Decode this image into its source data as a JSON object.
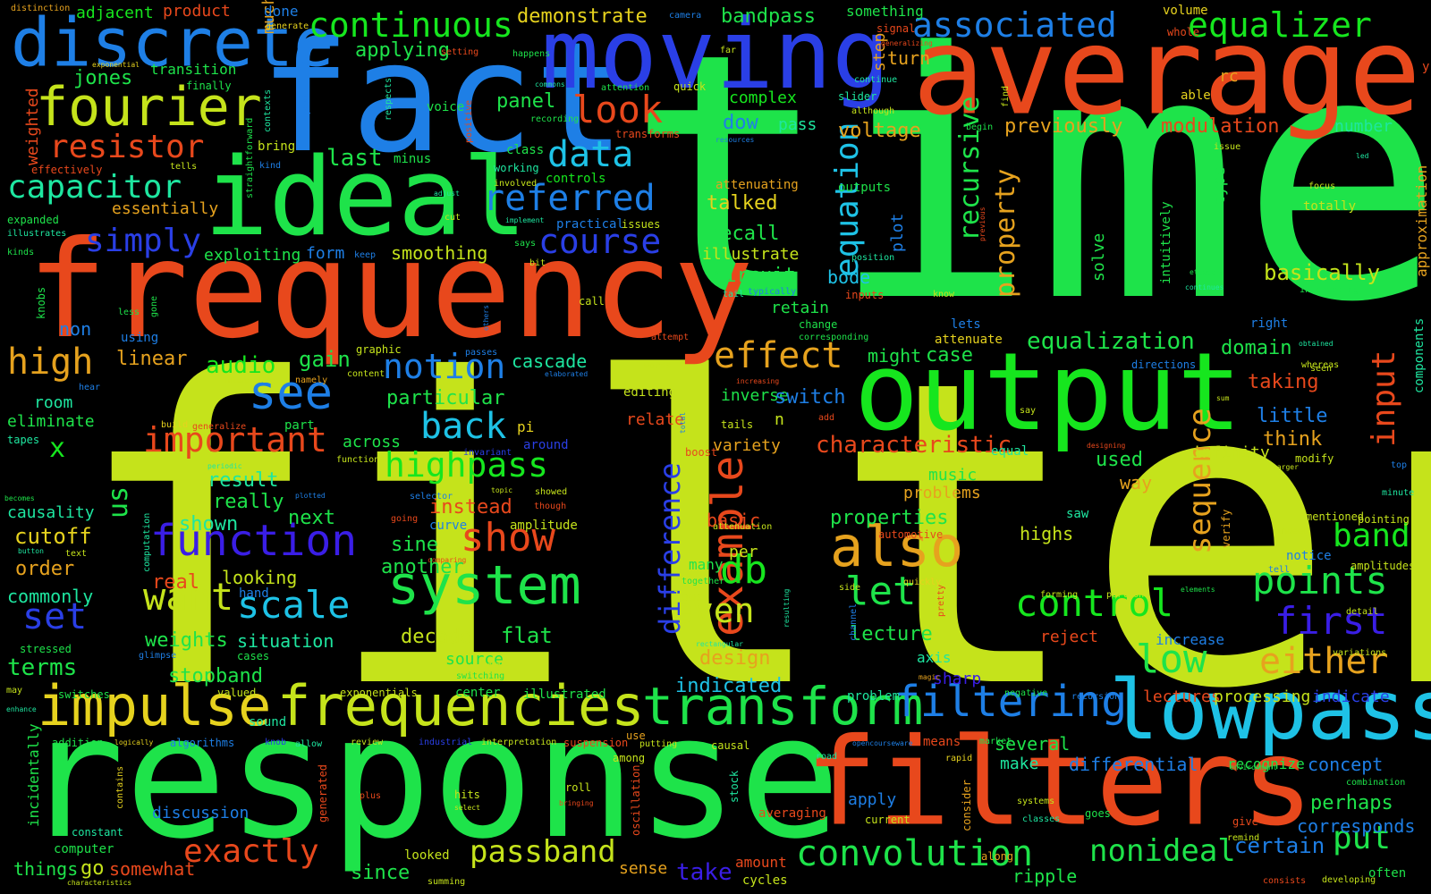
{
  "palette": {
    "yellowgreen": "#c5e31b",
    "green": "#1ee34a",
    "lime": "#16e61e",
    "orange": "#e8481c",
    "amber": "#e6a21e",
    "blue": "#1e7fe6",
    "indigo": "#2a3fe6",
    "violet": "#3a1ee6",
    "cyan": "#1ec2e6",
    "teal": "#1ee6a0",
    "background": "#000000"
  },
  "words": [
    {
      "t": "time"
    },
    {
      "t": "filter"
    },
    {
      "t": "response"
    },
    {
      "t": "frequency"
    },
    {
      "t": "average"
    },
    {
      "t": "fact"
    },
    {
      "t": "ideal"
    },
    {
      "t": "moving"
    },
    {
      "t": "output"
    },
    {
      "t": "filters"
    },
    {
      "t": "lowpass"
    },
    {
      "t": "discrete"
    },
    {
      "t": "fourier"
    },
    {
      "t": "impulse"
    },
    {
      "t": "frequencies"
    },
    {
      "t": "transform"
    },
    {
      "t": "filtering"
    },
    {
      "t": "system"
    },
    {
      "t": "also"
    },
    {
      "t": "example"
    },
    {
      "t": "convolution"
    },
    {
      "t": "function"
    },
    {
      "t": "continuous"
    },
    {
      "t": "associated"
    },
    {
      "t": "equalizer"
    },
    {
      "t": "resistor"
    },
    {
      "t": "capacitor"
    },
    {
      "t": "highpass"
    },
    {
      "t": "notion"
    },
    {
      "t": "important"
    },
    {
      "t": "see"
    },
    {
      "t": "back"
    },
    {
      "t": "show"
    },
    {
      "t": "want"
    },
    {
      "t": "scale"
    },
    {
      "t": "control"
    },
    {
      "t": "points"
    },
    {
      "t": "first"
    },
    {
      "t": "either"
    },
    {
      "t": "low"
    },
    {
      "t": "band"
    },
    {
      "t": "db"
    },
    {
      "t": "let"
    },
    {
      "t": "even"
    },
    {
      "t": "effect"
    },
    {
      "t": "look"
    },
    {
      "t": "data"
    },
    {
      "t": "referred"
    },
    {
      "t": "course"
    },
    {
      "t": "simply"
    },
    {
      "t": "high"
    },
    {
      "t": "set"
    },
    {
      "t": "exactly"
    },
    {
      "t": "passband"
    },
    {
      "t": "nonideal"
    },
    {
      "t": "put"
    },
    {
      "t": "certain"
    },
    {
      "t": "equalization"
    },
    {
      "t": "characteristic"
    },
    {
      "t": "sequence"
    },
    {
      "t": "difference"
    },
    {
      "t": "equation"
    },
    {
      "t": "recursive"
    },
    {
      "t": "property"
    },
    {
      "t": "input"
    },
    {
      "t": "jones"
    },
    {
      "t": "adjacent"
    },
    {
      "t": "product"
    },
    {
      "t": "demonstrate"
    },
    {
      "t": "bandpass"
    },
    {
      "t": "transition"
    },
    {
      "t": "weighted"
    },
    {
      "t": "last"
    },
    {
      "t": "essentially"
    },
    {
      "t": "applying"
    },
    {
      "t": "panel"
    },
    {
      "t": "voltage"
    },
    {
      "t": "previously"
    },
    {
      "t": "modulation"
    },
    {
      "t": "number"
    },
    {
      "t": "talked"
    },
    {
      "t": "recall"
    },
    {
      "t": "illustrate"
    },
    {
      "t": "circuit"
    },
    {
      "t": "bode"
    },
    {
      "t": "retain"
    },
    {
      "t": "basically"
    },
    {
      "t": "smoothing"
    },
    {
      "t": "exploiting"
    },
    {
      "t": "form"
    },
    {
      "t": "linear"
    },
    {
      "t": "audio"
    },
    {
      "t": "gain"
    },
    {
      "t": "cascade"
    },
    {
      "t": "particular"
    },
    {
      "t": "room"
    },
    {
      "t": "eliminate"
    },
    {
      "t": "result"
    },
    {
      "t": "really"
    },
    {
      "t": "causality"
    },
    {
      "t": "cutoff"
    },
    {
      "t": "order"
    },
    {
      "t": "commonly"
    },
    {
      "t": "shown"
    },
    {
      "t": "next"
    },
    {
      "t": "instead"
    },
    {
      "t": "sine"
    },
    {
      "t": "another"
    },
    {
      "t": "real"
    },
    {
      "t": "looking"
    },
    {
      "t": "weights"
    },
    {
      "t": "situation"
    },
    {
      "t": "stopband"
    },
    {
      "t": "terms"
    },
    {
      "t": "decade"
    },
    {
      "t": "flat"
    },
    {
      "t": "source"
    },
    {
      "t": "lecture"
    },
    {
      "t": "design"
    },
    {
      "t": "indicated"
    },
    {
      "t": "basic"
    },
    {
      "t": "variety"
    },
    {
      "t": "inverse"
    },
    {
      "t": "switch"
    },
    {
      "t": "case"
    },
    {
      "t": "domain"
    },
    {
      "t": "taking"
    },
    {
      "t": "little"
    },
    {
      "t": "think"
    },
    {
      "t": "infinity"
    },
    {
      "t": "used"
    },
    {
      "t": "way"
    },
    {
      "t": "music"
    },
    {
      "t": "problems"
    },
    {
      "t": "properties"
    },
    {
      "t": "highs"
    },
    {
      "t": "reject"
    },
    {
      "t": "axis"
    },
    {
      "t": "sharp"
    },
    {
      "t": "increase"
    },
    {
      "t": "lectures"
    },
    {
      "t": "processing"
    },
    {
      "t": "indicate"
    },
    {
      "t": "several"
    },
    {
      "t": "make"
    },
    {
      "t": "differential"
    },
    {
      "t": "concept"
    },
    {
      "t": "recognize"
    },
    {
      "t": "perhaps"
    },
    {
      "t": "corresponds"
    },
    {
      "t": "apply"
    },
    {
      "t": "averaging"
    },
    {
      "t": "amount"
    },
    {
      "t": "take"
    },
    {
      "t": "since"
    },
    {
      "t": "go"
    },
    {
      "t": "things"
    },
    {
      "t": "somewhat"
    },
    {
      "t": "ripple"
    },
    {
      "t": "sense"
    },
    {
      "t": "discussion"
    },
    {
      "t": "computer"
    },
    {
      "t": "us"
    },
    {
      "t": "x"
    },
    {
      "t": "non"
    },
    {
      "t": "using"
    },
    {
      "t": "complex"
    },
    {
      "t": "pass"
    },
    {
      "t": "dow"
    },
    {
      "t": "step"
    },
    {
      "t": "turn"
    },
    {
      "t": "much"
    },
    {
      "t": "done"
    },
    {
      "t": "something"
    },
    {
      "t": "volume"
    },
    {
      "t": "rc"
    },
    {
      "t": "type"
    },
    {
      "t": "solve"
    },
    {
      "t": "plot"
    },
    {
      "t": "might"
    },
    {
      "t": "per"
    },
    {
      "t": "n"
    },
    {
      "t": "approximation"
    },
    {
      "t": "components"
    },
    {
      "t": "intuitively"
    },
    {
      "t": "right"
    },
    {
      "t": "lets"
    },
    {
      "t": "knobs"
    },
    {
      "t": "controls"
    },
    {
      "t": "class"
    },
    {
      "t": "minus"
    },
    {
      "t": "bring"
    },
    {
      "t": "voice"
    },
    {
      "t": "finally"
    },
    {
      "t": "expanded"
    },
    {
      "t": "illustrates"
    },
    {
      "t": "kinds"
    },
    {
      "t": "distinction"
    },
    {
      "t": "past"
    },
    {
      "t": "signal"
    },
    {
      "t": "whole"
    },
    {
      "t": "able"
    },
    {
      "t": "camera"
    },
    {
      "t": "happens"
    },
    {
      "t": "generate"
    },
    {
      "t": "setting"
    },
    {
      "t": "exponential"
    },
    {
      "t": "attention"
    },
    {
      "t": "quick"
    },
    {
      "t": "recording"
    },
    {
      "t": "transforms"
    },
    {
      "t": "commons"
    },
    {
      "t": "working"
    },
    {
      "t": "involved"
    },
    {
      "t": "cut"
    },
    {
      "t": "practical"
    },
    {
      "t": "issues"
    },
    {
      "t": "implement"
    },
    {
      "t": "attenuating"
    },
    {
      "t": "outputs"
    },
    {
      "t": "slider"
    },
    {
      "t": "although"
    },
    {
      "t": "continue"
    },
    {
      "t": "focus"
    },
    {
      "t": "totally"
    },
    {
      "t": "interesting"
    },
    {
      "t": "says"
    },
    {
      "t": "bit"
    },
    {
      "t": "keep"
    },
    {
      "t": "call"
    },
    {
      "t": "typically"
    },
    {
      "t": "inputs"
    },
    {
      "t": "change"
    },
    {
      "t": "corresponding"
    },
    {
      "t": "attenuate"
    },
    {
      "t": "attempt"
    },
    {
      "t": "graphic"
    },
    {
      "t": "content"
    },
    {
      "t": "namely"
    },
    {
      "t": "interpreting"
    },
    {
      "t": "hear"
    },
    {
      "t": "tapes"
    },
    {
      "t": "editing"
    },
    {
      "t": "relate"
    },
    {
      "t": "pi"
    },
    {
      "t": "around"
    },
    {
      "t": "across"
    },
    {
      "t": "build"
    },
    {
      "t": "generalize"
    },
    {
      "t": "part"
    },
    {
      "t": "functions"
    },
    {
      "t": "periodic"
    },
    {
      "t": "becomes"
    },
    {
      "t": "button"
    },
    {
      "t": "selector"
    },
    {
      "t": "topic"
    },
    {
      "t": "showed"
    },
    {
      "t": "though"
    },
    {
      "t": "going"
    },
    {
      "t": "curve"
    },
    {
      "t": "amplitude"
    },
    {
      "t": "text"
    },
    {
      "t": "computation"
    },
    {
      "t": "hand"
    },
    {
      "t": "stressed"
    },
    {
      "t": "glimpse"
    },
    {
      "t": "cases"
    },
    {
      "t": "aware"
    },
    {
      "t": "switching"
    },
    {
      "t": "center"
    },
    {
      "t": "valued"
    },
    {
      "t": "exponentials"
    },
    {
      "t": "illustrated"
    },
    {
      "t": "switches"
    },
    {
      "t": "may"
    },
    {
      "t": "enhance"
    },
    {
      "t": "addition"
    },
    {
      "t": "logically"
    },
    {
      "t": "algorithms"
    },
    {
      "t": "sound"
    },
    {
      "t": "knob"
    },
    {
      "t": "allow"
    },
    {
      "t": "review"
    },
    {
      "t": "industrial"
    },
    {
      "t": "interpretation"
    },
    {
      "t": "suspension"
    },
    {
      "t": "putting"
    },
    {
      "t": "causal"
    },
    {
      "t": "opencourseware"
    },
    {
      "t": "means"
    },
    {
      "t": "market"
    },
    {
      "t": "rapid"
    },
    {
      "t": "road"
    },
    {
      "t": "among"
    },
    {
      "t": "use"
    },
    {
      "t": "roll"
    },
    {
      "t": "bringing"
    },
    {
      "t": "hits"
    },
    {
      "t": "select"
    },
    {
      "t": "plus"
    },
    {
      "t": "generated"
    },
    {
      "t": "contains"
    },
    {
      "t": "incidentally"
    },
    {
      "t": "constant"
    },
    {
      "t": "characteristics"
    },
    {
      "t": "summing"
    },
    {
      "t": "looked"
    },
    {
      "t": "oscillation"
    },
    {
      "t": "stock"
    },
    {
      "t": "cycles"
    },
    {
      "t": "current"
    },
    {
      "t": "along"
    },
    {
      "t": "consider"
    },
    {
      "t": "systems"
    },
    {
      "t": "classes"
    },
    {
      "t": "goes"
    },
    {
      "t": "give"
    },
    {
      "t": "remind"
    },
    {
      "t": "consists"
    },
    {
      "t": "developing"
    },
    {
      "t": "often"
    },
    {
      "t": "combination"
    },
    {
      "t": "environment"
    },
    {
      "t": "negative"
    },
    {
      "t": "recursion"
    },
    {
      "t": "magic"
    },
    {
      "t": "problem"
    },
    {
      "t": "side"
    },
    {
      "t": "channel"
    },
    {
      "t": "pretty"
    },
    {
      "t": "rectangular"
    },
    {
      "t": "quickly"
    },
    {
      "t": "resulting"
    },
    {
      "t": "lows"
    },
    {
      "t": "many"
    },
    {
      "t": "together"
    },
    {
      "t": "saw"
    },
    {
      "t": "forming"
    },
    {
      "t": "portion"
    },
    {
      "t": "tell"
    },
    {
      "t": "notice"
    },
    {
      "t": "indeed"
    },
    {
      "t": "mentioned"
    },
    {
      "t": "pointing"
    },
    {
      "t": "amplitudes"
    },
    {
      "t": "detail"
    },
    {
      "t": "variations"
    },
    {
      "t": "verify"
    },
    {
      "t": "minute"
    },
    {
      "t": "top"
    },
    {
      "t": "larger"
    },
    {
      "t": "designing"
    },
    {
      "t": "modify"
    },
    {
      "t": "equal"
    },
    {
      "t": "say"
    },
    {
      "t": "sum"
    },
    {
      "t": "seen"
    },
    {
      "t": "whereas"
    },
    {
      "t": "directions"
    },
    {
      "t": "obtained"
    },
    {
      "t": "increasing"
    },
    {
      "t": "words"
    },
    {
      "t": "total"
    },
    {
      "t": "tails"
    },
    {
      "t": "add"
    },
    {
      "t": "boost"
    },
    {
      "t": "attenuation"
    },
    {
      "t": "automotive"
    },
    {
      "t": "comparing"
    },
    {
      "t": "tail"
    },
    {
      "t": "position"
    },
    {
      "t": "resources"
    },
    {
      "t": "respects"
    },
    {
      "t": "contexts"
    },
    {
      "t": "straightforward"
    },
    {
      "t": "kind"
    },
    {
      "t": "tells"
    },
    {
      "t": "effectively"
    },
    {
      "t": "adjust"
    },
    {
      "t": "positive"
    },
    {
      "t": "far"
    },
    {
      "t": "generalizing"
    },
    {
      "t": "find"
    },
    {
      "t": "begin"
    },
    {
      "t": "issue"
    },
    {
      "t": "led"
    },
    {
      "t": "know"
    },
    {
      "t": "previous"
    },
    {
      "t": "etcetera"
    },
    {
      "t": "continues"
    },
    {
      "t": "others"
    },
    {
      "t": "passes"
    },
    {
      "t": "elaborated"
    },
    {
      "t": "invariant"
    },
    {
      "t": "plotted"
    },
    {
      "t": "less"
    },
    {
      "t": "gone"
    },
    {
      "t": "elements"
    },
    {
      "t": "y"
    }
  ]
}
